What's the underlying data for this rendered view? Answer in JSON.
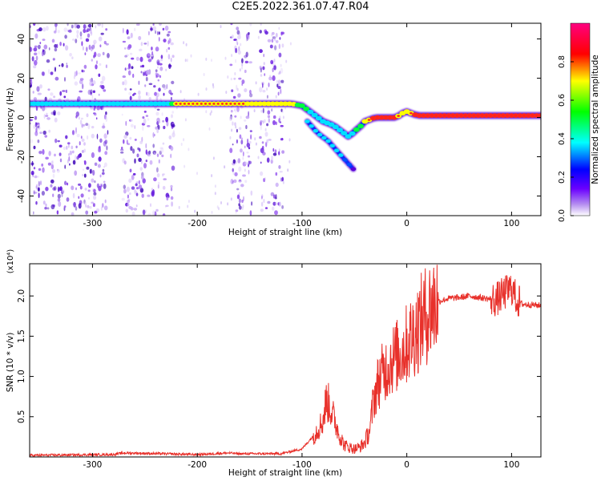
{
  "title": "C2E5.2022.361.07.47.R04",
  "colors": {
    "snr_line": "#e8302a",
    "ridge_low": "#5a00d8",
    "ridge_mid": "#00e0ff",
    "ridge_high": "#ff1a1a",
    "noise": "#7a22e0",
    "colorbar": [
      "#ffffff",
      "#6a00ff",
      "#0000ff",
      "#00ffff",
      "#00ff00",
      "#ffff00",
      "#ff0000",
      "#ff00a0"
    ]
  },
  "chart_data": [
    {
      "type": "heatmap",
      "title": "",
      "xlabel": "Height of straight line (km)",
      "ylabel": "Frequency (Hz)",
      "xlim": [
        -360,
        128
      ],
      "ylim": [
        -50,
        48
      ],
      "x_ticks": [
        -300,
        -200,
        -100,
        0,
        100
      ],
      "x_tick_labels": [
        "-300",
        "-200",
        "-100",
        "0",
        "100"
      ],
      "y_ticks": [
        -40,
        -20,
        0,
        20,
        40
      ],
      "y_tick_labels": [
        "-40",
        "-20",
        "0",
        "20",
        "40"
      ],
      "colorbar": {
        "label": "Normalized spectral amplitude",
        "range": [
          0,
          1
        ],
        "ticks": [
          0,
          0.2,
          0.4,
          0.6,
          0.8
        ],
        "tick_labels": [
          "0.0",
          "0.2",
          "0.4",
          "0.6",
          "0.8"
        ]
      },
      "noise_bands": [
        [
          -360,
          -285
        ],
        [
          -272,
          -222
        ],
        [
          -168,
          -148
        ],
        [
          -140,
          -118
        ]
      ],
      "ridge": {
        "x": [
          -360,
          -230,
          -220,
          -110,
          -100,
          -90,
          -80,
          -70,
          -60,
          -55,
          -50,
          -45,
          -40,
          -35,
          -30,
          -20,
          -10,
          -5,
          0,
          5,
          10,
          40,
          80,
          100,
          128
        ],
        "y": [
          7,
          7,
          7,
          7,
          6,
          2,
          -2,
          -4,
          -8,
          -10,
          -7,
          -5,
          -2,
          -1,
          0,
          0,
          0,
          2,
          3,
          2,
          1,
          1,
          1,
          1,
          1
        ],
        "amplitude": [
          0.55,
          0.5,
          0.85,
          0.8,
          0.7,
          0.6,
          0.6,
          0.6,
          0.6,
          0.5,
          0.7,
          0.7,
          0.8,
          0.9,
          0.95,
          0.95,
          0.9,
          0.8,
          0.8,
          0.9,
          0.95,
          0.95,
          0.95,
          0.95,
          0.9
        ]
      },
      "secondary_ridge": {
        "x": [
          -95,
          -85,
          -75,
          -65,
          -55,
          -48
        ],
        "y": [
          -2,
          -8,
          -12,
          -18,
          -24,
          -28
        ],
        "amplitude": [
          0.5,
          0.55,
          0.6,
          0.55,
          0.4,
          0.2
        ]
      }
    },
    {
      "type": "line",
      "title": "",
      "xlabel": "Height of straight line (km)",
      "ylabel": "SNR (10 * v/v)",
      "y_multiplier": "(x10⁴)",
      "xlim": [
        -360,
        128
      ],
      "ylim": [
        0,
        2.4
      ],
      "x_ticks": [
        -300,
        -200,
        -100,
        0,
        100
      ],
      "x_tick_labels": [
        "-300",
        "-200",
        "-100",
        "0",
        "100"
      ],
      "y_ticks": [
        0.5,
        1.0,
        1.5,
        2.0
      ],
      "y_tick_labels": [
        "0.5",
        "1.0",
        "1.5",
        "2.0"
      ],
      "series": [
        {
          "x": [
            -360,
            -280,
            -270,
            -200,
            -170,
            -160,
            -120,
            -100,
            -90,
            -80,
            -77,
            -74,
            -70,
            -65,
            -60,
            -55,
            -50,
            -45,
            -40,
            -35,
            -32,
            -28,
            -25,
            -20,
            -15,
            -10,
            -5,
            0,
            5,
            10,
            15,
            20,
            25,
            30,
            35,
            40,
            50,
            60,
            70,
            80,
            85,
            90,
            95,
            100,
            105,
            110,
            128
          ],
          "y": [
            0.02,
            0.03,
            0.05,
            0.03,
            0.05,
            0.04,
            0.04,
            0.1,
            0.25,
            0.45,
            0.7,
            0.65,
            0.5,
            0.3,
            0.15,
            0.12,
            0.1,
            0.12,
            0.18,
            0.35,
            0.7,
            0.9,
            1.0,
            1.1,
            1.2,
            1.25,
            1.3,
            1.4,
            1.5,
            1.6,
            1.7,
            1.8,
            1.87,
            1.93,
            1.95,
            1.97,
            1.98,
            2.0,
            1.98,
            1.96,
            1.95,
            2.0,
            2.05,
            2.1,
            1.95,
            1.9,
            1.88
          ]
        }
      ]
    }
  ]
}
